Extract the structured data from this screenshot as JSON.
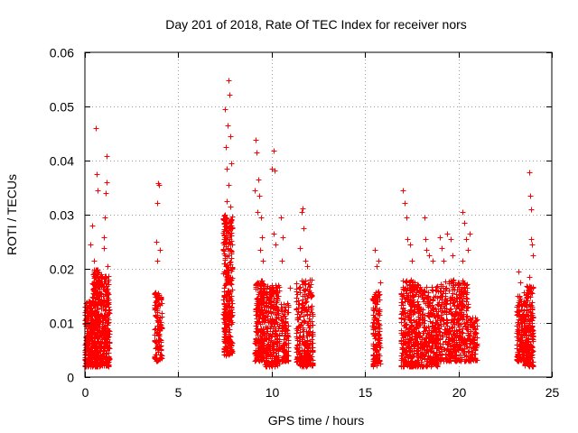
{
  "chart_data": {
    "type": "scatter",
    "title": "Day 201 of 2018, Rate Of TEC Index for receiver nors",
    "xlabel": "GPS time / hours",
    "ylabel": "ROTI / TECUs",
    "xlim": [
      0,
      25
    ],
    "ylim": [
      0,
      0.06
    ],
    "xticks": [
      0,
      5,
      10,
      15,
      20,
      25
    ],
    "xtick_labels": [
      "0",
      "5",
      "10",
      "15",
      "20",
      "25"
    ],
    "yticks": [
      0,
      0.01,
      0.02,
      0.03,
      0.04,
      0.05,
      0.06
    ],
    "ytick_labels": [
      "0",
      "0.01",
      "0.02",
      "0.03",
      "0.04",
      "0.05",
      "0.06"
    ],
    "grid": true,
    "marker": "+",
    "color": "#ff0000",
    "clusters": [
      {
        "x_range": [
          0.0,
          0.4
        ],
        "y_range": [
          0.002,
          0.014
        ],
        "count": 220
      },
      {
        "x_range": [
          0.4,
          0.8
        ],
        "y_range": [
          0.002,
          0.02
        ],
        "count": 260
      },
      {
        "x_range": [
          0.8,
          1.3
        ],
        "y_range": [
          0.002,
          0.019
        ],
        "count": 240
      },
      {
        "x_range": [
          3.7,
          4.1
        ],
        "y_range": [
          0.003,
          0.016
        ],
        "count": 120
      },
      {
        "x_range": [
          7.4,
          7.9
        ],
        "y_range": [
          0.004,
          0.03
        ],
        "count": 330
      },
      {
        "x_range": [
          9.1,
          9.6
        ],
        "y_range": [
          0.003,
          0.018
        ],
        "count": 220
      },
      {
        "x_range": [
          9.6,
          10.4
        ],
        "y_range": [
          0.002,
          0.017
        ],
        "count": 280
      },
      {
        "x_range": [
          10.5,
          10.9
        ],
        "y_range": [
          0.003,
          0.014
        ],
        "count": 110
      },
      {
        "x_range": [
          11.3,
          12.2
        ],
        "y_range": [
          0.002,
          0.018
        ],
        "count": 280
      },
      {
        "x_range": [
          15.4,
          15.8
        ],
        "y_range": [
          0.002,
          0.016
        ],
        "count": 150
      },
      {
        "x_range": [
          16.9,
          17.8
        ],
        "y_range": [
          0.002,
          0.018
        ],
        "count": 320
      },
      {
        "x_range": [
          17.8,
          18.9
        ],
        "y_range": [
          0.002,
          0.017
        ],
        "count": 340
      },
      {
        "x_range": [
          18.9,
          20.5
        ],
        "y_range": [
          0.003,
          0.018
        ],
        "count": 420
      },
      {
        "x_range": [
          20.5,
          21.0
        ],
        "y_range": [
          0.003,
          0.011
        ],
        "count": 90
      },
      {
        "x_range": [
          23.1,
          23.5
        ],
        "y_range": [
          0.003,
          0.015
        ],
        "count": 120
      },
      {
        "x_range": [
          23.5,
          24.0
        ],
        "y_range": [
          0.002,
          0.017
        ],
        "count": 220
      }
    ],
    "points": [
      [
        0.3,
        0.0245
      ],
      [
        0.4,
        0.028
      ],
      [
        0.5,
        0.0215
      ],
      [
        0.6,
        0.046
      ],
      [
        0.65,
        0.0375
      ],
      [
        0.7,
        0.0345
      ],
      [
        1.0,
        0.0238
      ],
      [
        1.0,
        0.0258
      ],
      [
        1.05,
        0.0295
      ],
      [
        1.1,
        0.034
      ],
      [
        1.15,
        0.036
      ],
      [
        1.15,
        0.0408
      ],
      [
        1.2,
        0.0205
      ],
      [
        3.8,
        0.025
      ],
      [
        3.85,
        0.0215
      ],
      [
        3.85,
        0.0322
      ],
      [
        3.9,
        0.0358
      ],
      [
        3.95,
        0.0355
      ],
      [
        4.0,
        0.0235
      ],
      [
        7.5,
        0.0495
      ],
      [
        7.55,
        0.0425
      ],
      [
        7.6,
        0.0385
      ],
      [
        7.65,
        0.0465
      ],
      [
        7.7,
        0.0548
      ],
      [
        7.75,
        0.0522
      ],
      [
        7.8,
        0.0445
      ],
      [
        7.85,
        0.0395
      ],
      [
        7.7,
        0.0355
      ],
      [
        7.6,
        0.0325
      ],
      [
        7.8,
        0.0315
      ],
      [
        9.1,
        0.0345
      ],
      [
        9.15,
        0.0438
      ],
      [
        9.2,
        0.0415
      ],
      [
        9.25,
        0.0305
      ],
      [
        9.3,
        0.0365
      ],
      [
        9.35,
        0.0335
      ],
      [
        9.45,
        0.0295
      ],
      [
        9.5,
        0.0258
      ],
      [
        9.4,
        0.0235
      ],
      [
        9.55,
        0.0215
      ],
      [
        10.0,
        0.0385
      ],
      [
        10.1,
        0.0418
      ],
      [
        10.15,
        0.0382
      ],
      [
        10.1,
        0.0265
      ],
      [
        10.2,
        0.0245
      ],
      [
        10.5,
        0.0295
      ],
      [
        10.6,
        0.0258
      ],
      [
        10.55,
        0.0215
      ],
      [
        11.5,
        0.0238
      ],
      [
        11.6,
        0.0305
      ],
      [
        11.65,
        0.0312
      ],
      [
        11.7,
        0.0275
      ],
      [
        11.8,
        0.0215
      ],
      [
        11.9,
        0.0205
      ],
      [
        11.0,
        0.0165
      ],
      [
        15.5,
        0.0235
      ],
      [
        15.6,
        0.0205
      ],
      [
        15.7,
        0.0215
      ],
      [
        15.8,
        0.0175
      ],
      [
        17.0,
        0.0345
      ],
      [
        17.1,
        0.0322
      ],
      [
        17.2,
        0.0295
      ],
      [
        17.25,
        0.0255
      ],
      [
        17.4,
        0.0245
      ],
      [
        17.5,
        0.0215
      ],
      [
        18.2,
        0.0295
      ],
      [
        18.25,
        0.0255
      ],
      [
        18.3,
        0.0235
      ],
      [
        18.4,
        0.0225
      ],
      [
        18.6,
        0.0215
      ],
      [
        19.0,
        0.0258
      ],
      [
        19.1,
        0.0238
      ],
      [
        19.2,
        0.0215
      ],
      [
        19.4,
        0.0265
      ],
      [
        19.6,
        0.0255
      ],
      [
        19.7,
        0.0225
      ],
      [
        20.2,
        0.0305
      ],
      [
        20.3,
        0.0285
      ],
      [
        20.4,
        0.0255
      ],
      [
        20.5,
        0.0235
      ],
      [
        20.6,
        0.0265
      ],
      [
        20.2,
        0.0215
      ],
      [
        23.2,
        0.0195
      ],
      [
        23.3,
        0.0175
      ],
      [
        23.8,
        0.0378
      ],
      [
        23.85,
        0.0335
      ],
      [
        23.9,
        0.031
      ],
      [
        23.9,
        0.0255
      ],
      [
        24.0,
        0.0225
      ],
      [
        23.95,
        0.0245
      ],
      [
        23.8,
        0.0185
      ]
    ]
  }
}
